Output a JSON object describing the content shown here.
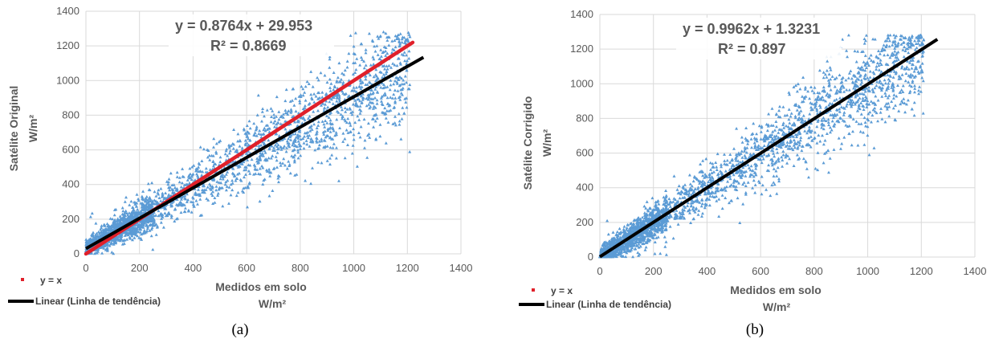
{
  "chart_data": [
    {
      "type": "scatter",
      "panel_label": "(a)",
      "xlabel": "Medidos em solo",
      "xunit": "W/m²",
      "ylabel": "Satélite Original",
      "yunit": "W/m²",
      "xlim": [
        0,
        1400
      ],
      "ylim": [
        0,
        1400
      ],
      "xticks": [
        "0",
        "200",
        "400",
        "600",
        "800",
        "1000",
        "1200",
        "1400"
      ],
      "yticks": [
        "0",
        "200",
        "400",
        "600",
        "800",
        "1000",
        "1200",
        "1400"
      ],
      "grid": true,
      "equation": "y = 0.8764x + 29.953",
      "r2": "R² = 0.8669",
      "trendline": {
        "slope": 0.8764,
        "intercept": 29.953,
        "x_range": [
          0,
          1260
        ]
      },
      "identity_line": {
        "x_range": [
          0,
          1220
        ]
      },
      "scatter": {
        "slope": 0.8764,
        "intercept": 29.953,
        "x_max": 1260,
        "count": 2600,
        "seed": 11
      },
      "legend": [
        {
          "label": "y = x",
          "color": "#e0202a",
          "marker": "square"
        },
        {
          "label": "Linear (Linha de tendência)",
          "color": "#000000",
          "marker": "line"
        }
      ],
      "legend_position": "bottom-left",
      "colors": {
        "points": "#5b9bd5",
        "identity": "#e0202a",
        "trend": "#000000",
        "grid": "#d9d9d9"
      }
    },
    {
      "type": "scatter",
      "panel_label": "(b)",
      "xlabel": "Medidos em solo",
      "xunit": "W/m²",
      "ylabel": "Satélite  Corrigido",
      "yunit": "W/m²",
      "xlim": [
        0,
        1400
      ],
      "ylim": [
        0,
        1400
      ],
      "xticks": [
        "0",
        "200",
        "400",
        "600",
        "800",
        "1000",
        "1200",
        "1400"
      ],
      "yticks": [
        "0",
        "200",
        "400",
        "600",
        "800",
        "1000",
        "1200",
        "1400"
      ],
      "grid": true,
      "equation": "y = 0.9962x + 1.3231",
      "r2": "R² = 0.897",
      "trendline": {
        "slope": 0.9962,
        "intercept": 1.3231,
        "x_range": [
          0,
          1260
        ]
      },
      "identity_line": null,
      "scatter": {
        "slope": 0.9962,
        "intercept": 1.3231,
        "x_max": 1260,
        "count": 2600,
        "seed": 29
      },
      "legend": [
        {
          "label": "y = x",
          "color": "#e0202a",
          "marker": "square"
        },
        {
          "label": "Linear (Linha de tendência)",
          "color": "#000000",
          "marker": "line"
        }
      ],
      "legend_position": "bottom-left",
      "colors": {
        "points": "#5b9bd5",
        "identity": "#e0202a",
        "trend": "#000000",
        "grid": "#d9d9d9"
      }
    }
  ]
}
